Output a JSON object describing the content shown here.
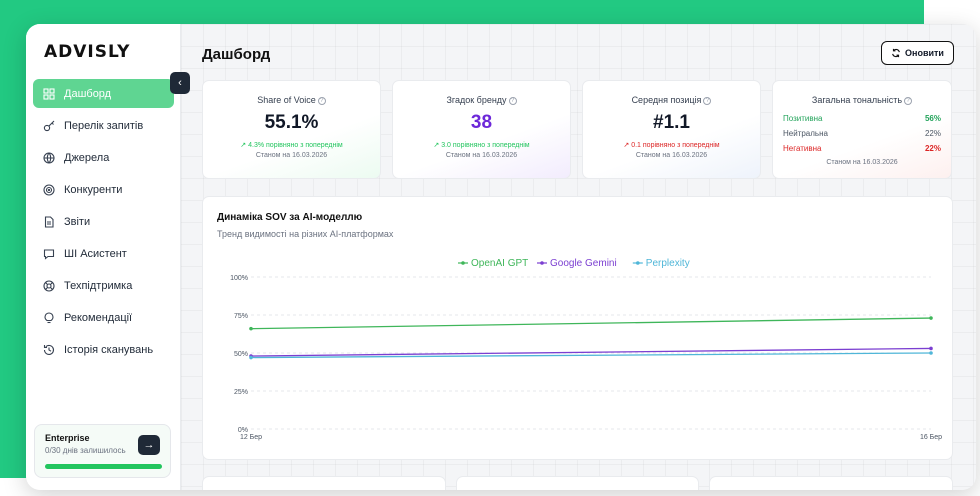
{
  "brand": {
    "logo": "ADVISLY",
    "accent": "#22c982"
  },
  "sidebar": {
    "collapse_icon": "chevron-left-icon",
    "items": [
      {
        "label": "Дашборд",
        "icon": "grid-icon",
        "active": true
      },
      {
        "label": "Перелік запитів",
        "icon": "key-icon"
      },
      {
        "label": "Джерела",
        "icon": "globe-icon"
      },
      {
        "label": "Конкуренти",
        "icon": "target-icon"
      },
      {
        "label": "Звіти",
        "icon": "document-icon"
      },
      {
        "label": "ШІ Асистент",
        "icon": "chat-icon"
      },
      {
        "label": "Техпідтримка",
        "icon": "lifebuoy-icon"
      },
      {
        "label": "Рекомендації",
        "icon": "lightbulb-icon"
      },
      {
        "label": "Історія сканувань",
        "icon": "history-icon"
      }
    ],
    "plan": {
      "title": "Enterprise",
      "subtitle": "0/30 днів залишилось",
      "button_icon": "arrow-right-icon",
      "progress": 1.0
    }
  },
  "header": {
    "title": "Дашборд",
    "refresh_label": "Оновити",
    "refresh_icon": "refresh-icon"
  },
  "kpis": [
    {
      "label": "Share of Voice",
      "value": "55.1%",
      "change": "↗ 4.3% порівняно з попереднім",
      "trend": "up",
      "date": "Станом на 16.03.2026",
      "value_color": "#111827"
    },
    {
      "label": "Згадок бренду",
      "value": "38",
      "change": "↗ 3.0 порівняно з попереднім",
      "trend": "up",
      "date": "Станом на 16.03.2026",
      "value_color": "#6d28d9"
    },
    {
      "label": "Середня позиція",
      "value": "#1.1",
      "change": "↗ 0.1 порівняно з попереднім",
      "trend": "down",
      "date": "Станом на 16.03.2026",
      "value_color": "#111827"
    }
  ],
  "tonality": {
    "label": "Загальна тональність",
    "rows": [
      {
        "name": "Позитивна",
        "value": "56%",
        "color": "#22a35a"
      },
      {
        "name": "Нейтральна",
        "value": "22%",
        "color": "#4b5563"
      },
      {
        "name": "Негативна",
        "value": "22%",
        "color": "#dc2626"
      }
    ],
    "date": "Станом на 16.03.2026"
  },
  "chart_panel": {
    "title": "Динаміка SOV за AI-моделлю",
    "subtitle": "Тренд видимості на різних AI-платформах"
  },
  "chart_data": {
    "type": "line",
    "x": [
      "12 Бер",
      "16 Бер"
    ],
    "series": [
      {
        "name": "OpenAI GPT",
        "values": [
          66,
          73
        ],
        "color": "#3fb65a"
      },
      {
        "name": "Google Gemini",
        "values": [
          48,
          53
        ],
        "color": "#7b3fd1"
      },
      {
        "name": "Perplexity",
        "values": [
          47,
          50
        ],
        "color": "#4fb6d8"
      }
    ],
    "y_ticks": [
      "0%",
      "25%",
      "50%",
      "75%",
      "100%"
    ],
    "ylim": [
      0,
      100
    ],
    "grid": true,
    "legend": "top-center"
  }
}
